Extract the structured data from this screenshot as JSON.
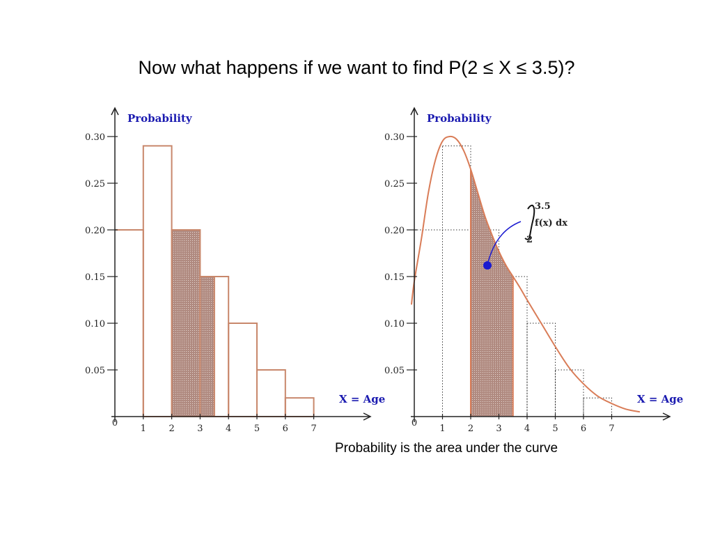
{
  "slide": {
    "title": "Now what happens if we want to find P(2  ≤ X ≤ 3.5)?",
    "caption": "Probability is the area under the curve"
  },
  "colors": {
    "bar_stroke": "#c8876b",
    "shade": "#b08a80",
    "curve": "#d97c57",
    "label": "#1a1ab0",
    "annotation": "#1a1ad0"
  },
  "chart_data": [
    {
      "type": "bar",
      "ylabel": "Probability",
      "xlabel": "X = Age",
      "ylim": [
        0,
        0.3
      ],
      "y_ticks": [
        "0.05",
        "0.10",
        "0.15",
        "0.20",
        "0.25",
        "0.30"
      ],
      "x_ticks": [
        "1",
        "2",
        "3",
        "4",
        "5",
        "6",
        "7"
      ],
      "origin_label": "0",
      "bars": [
        {
          "x0": 0,
          "x1": 1,
          "value": 0.2,
          "shaded": false
        },
        {
          "x0": 1,
          "x1": 2,
          "value": 0.29,
          "shaded": false
        },
        {
          "x0": 2,
          "x1": 3,
          "value": 0.2,
          "shaded": true
        },
        {
          "x0": 3,
          "x1": 3.5,
          "value": 0.15,
          "shaded": true
        },
        {
          "x0": 3.5,
          "x1": 4,
          "value": 0.15,
          "shaded": false
        },
        {
          "x0": 4,
          "x1": 5,
          "value": 0.1,
          "shaded": false
        },
        {
          "x0": 5,
          "x1": 6,
          "value": 0.05,
          "shaded": false
        },
        {
          "x0": 6,
          "x1": 7,
          "value": 0.02,
          "shaded": false
        }
      ]
    },
    {
      "type": "area",
      "ylabel": "Probability",
      "xlabel": "X = Age",
      "ylim": [
        0,
        0.3
      ],
      "y_ticks": [
        "0.05",
        "0.10",
        "0.15",
        "0.20",
        "0.25",
        "0.30"
      ],
      "x_ticks": [
        "1",
        "2",
        "3",
        "4",
        "5",
        "6",
        "7"
      ],
      "origin_label": "0",
      "shaded_range": [
        2,
        3.5
      ],
      "integral": {
        "upper": "3.5",
        "lower": "2",
        "integrand": "f(x) dx"
      },
      "reference_bars": [
        {
          "x0": 1,
          "x1": 2,
          "value": 0.29
        },
        {
          "x0": 2,
          "x1": 3,
          "value": 0.2
        },
        {
          "x0": 3,
          "x1": 4,
          "value": 0.15
        },
        {
          "x0": 4,
          "x1": 5,
          "value": 0.1
        },
        {
          "x0": 5,
          "x1": 6,
          "value": 0.05
        },
        {
          "x0": 6,
          "x1": 7,
          "value": 0.02
        }
      ],
      "curve": {
        "x": [
          -0.1,
          0,
          0.25,
          0.5,
          0.75,
          1,
          1.25,
          1.5,
          1.75,
          2,
          2.25,
          2.5,
          2.75,
          3,
          3.25,
          3.5,
          3.75,
          4,
          4.5,
          5,
          5.5,
          6,
          6.5,
          7,
          7.5,
          8
        ],
        "y": [
          0.12,
          0.145,
          0.19,
          0.24,
          0.275,
          0.295,
          0.3,
          0.297,
          0.285,
          0.265,
          0.24,
          0.215,
          0.195,
          0.177,
          0.162,
          0.15,
          0.138,
          0.125,
          0.1,
          0.075,
          0.052,
          0.035,
          0.022,
          0.014,
          0.008,
          0.005
        ]
      }
    }
  ]
}
